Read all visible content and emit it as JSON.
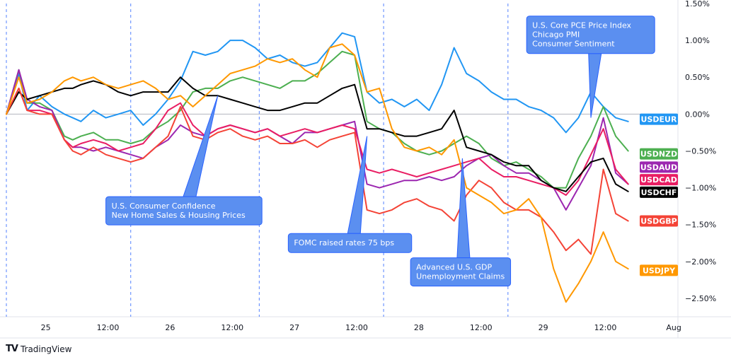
{
  "brand": {
    "logo": "TV",
    "name": "TradingView"
  },
  "chart_data": {
    "type": "line",
    "y_unit": "%",
    "ylim": [
      -2.75,
      1.5
    ],
    "yticks": [
      "1.50%",
      "1.00%",
      "0.50%",
      "0.00%",
      "−0.50%",
      "−1.00%",
      "−1.50%",
      "−2.00%",
      "−2.50%"
    ],
    "ytick_values": [
      1.5,
      1.0,
      0.5,
      0.0,
      -0.5,
      -1.0,
      -1.5,
      -2.0,
      -2.5
    ],
    "xlim": [
      0,
      162
    ],
    "xticks": [
      {
        "label": "25",
        "x": 9.5
      },
      {
        "label": "12:00",
        "x": 24.5
      },
      {
        "label": "26",
        "x": 39.5
      },
      {
        "label": "12:00",
        "x": 54.5
      },
      {
        "label": "27",
        "x": 69.5
      },
      {
        "label": "12:00",
        "x": 84.5
      },
      {
        "label": "28",
        "x": 99.5
      },
      {
        "label": "12:00",
        "x": 114.5
      },
      {
        "label": "29",
        "x": 129.5
      },
      {
        "label": "12:00",
        "x": 144.5
      },
      {
        "label": "Aug",
        "x": 161
      }
    ],
    "event_lines": [
      0,
      30,
      61,
      91,
      121
    ],
    "grid": "none",
    "series": [
      {
        "name": "USDEUR",
        "color": "#2196f3",
        "x": [
          0,
          3,
          5,
          8,
          11,
          14,
          16,
          18,
          21,
          24,
          27,
          30,
          33,
          36,
          39,
          42,
          45,
          48,
          51,
          54,
          57,
          60,
          63,
          66,
          69,
          72,
          75,
          78,
          81,
          84,
          87,
          90,
          93,
          96,
          99,
          102,
          105,
          108,
          111,
          114,
          117,
          120,
          123,
          126,
          129,
          132,
          135,
          138,
          141,
          144,
          147,
          150
        ],
        "y": [
          0,
          0.55,
          0.05,
          0.25,
          0.1,
          0,
          -0.05,
          -0.1,
          0.05,
          -0.05,
          0,
          0.05,
          -0.15,
          0,
          0.2,
          0.45,
          0.85,
          0.8,
          0.85,
          1.0,
          1.0,
          0.9,
          0.75,
          0.8,
          0.7,
          0.65,
          0.7,
          0.9,
          1.1,
          1.05,
          0.3,
          0.15,
          0.2,
          0.1,
          0.2,
          0.05,
          0.4,
          0.9,
          0.55,
          0.45,
          0.3,
          0.2,
          0.2,
          0.1,
          0.05,
          -0.05,
          -0.25,
          -0.05,
          0.3,
          0.1,
          -0.05,
          -0.1
        ]
      },
      {
        "name": "USDNZD",
        "color": "#4caf50",
        "x": [
          0,
          3,
          5,
          8,
          11,
          14,
          16,
          18,
          21,
          24,
          27,
          30,
          33,
          36,
          39,
          42,
          45,
          48,
          51,
          54,
          57,
          60,
          63,
          66,
          69,
          72,
          75,
          78,
          81,
          84,
          87,
          90,
          93,
          96,
          99,
          102,
          105,
          108,
          111,
          114,
          117,
          120,
          123,
          126,
          129,
          132,
          135,
          138,
          141,
          144,
          147,
          150
        ],
        "y": [
          0,
          0.6,
          0.15,
          0.15,
          0.05,
          -0.3,
          -0.35,
          -0.3,
          -0.25,
          -0.35,
          -0.35,
          -0.4,
          -0.35,
          -0.2,
          -0.1,
          0.05,
          0.3,
          0.35,
          0.35,
          0.45,
          0.5,
          0.45,
          0.4,
          0.35,
          0.45,
          0.45,
          0.55,
          0.7,
          0.85,
          0.8,
          -0.1,
          -0.2,
          -0.25,
          -0.4,
          -0.5,
          -0.55,
          -0.5,
          -0.4,
          -0.3,
          -0.4,
          -0.6,
          -0.7,
          -0.65,
          -0.75,
          -0.85,
          -1.0,
          -1.0,
          -0.6,
          -0.3,
          0.1,
          -0.3,
          -0.5
        ]
      },
      {
        "name": "USDAUD",
        "color": "#9c27b0",
        "x": [
          0,
          3,
          5,
          8,
          11,
          14,
          16,
          18,
          21,
          24,
          27,
          30,
          33,
          36,
          39,
          42,
          45,
          48,
          51,
          54,
          57,
          60,
          63,
          66,
          69,
          72,
          75,
          78,
          81,
          84,
          87,
          90,
          93,
          96,
          99,
          102,
          105,
          108,
          111,
          114,
          117,
          120,
          123,
          126,
          129,
          132,
          135,
          138,
          141,
          144,
          147,
          150
        ],
        "y": [
          0,
          0.6,
          0.2,
          0.1,
          0.05,
          -0.35,
          -0.45,
          -0.45,
          -0.5,
          -0.45,
          -0.5,
          -0.55,
          -0.6,
          -0.45,
          -0.35,
          -0.15,
          -0.25,
          -0.3,
          -0.2,
          -0.15,
          -0.2,
          -0.25,
          -0.2,
          -0.3,
          -0.4,
          -0.25,
          -0.25,
          -0.2,
          -0.15,
          -0.1,
          -0.95,
          -1.0,
          -0.95,
          -0.9,
          -0.9,
          -0.85,
          -0.9,
          -0.85,
          -0.7,
          -0.6,
          -0.55,
          -0.7,
          -0.8,
          -0.8,
          -0.9,
          -1.0,
          -1.3,
          -1.0,
          -0.7,
          -0.05,
          -0.8,
          -0.95
        ]
      },
      {
        "name": "USDCAD",
        "color": "#e91e63",
        "x": [
          0,
          3,
          5,
          8,
          11,
          14,
          16,
          18,
          21,
          24,
          27,
          30,
          33,
          36,
          39,
          42,
          45,
          48,
          51,
          54,
          57,
          60,
          63,
          66,
          69,
          72,
          75,
          78,
          81,
          84,
          87,
          90,
          93,
          96,
          99,
          102,
          105,
          108,
          111,
          114,
          117,
          120,
          123,
          126,
          129,
          132,
          135,
          138,
          141,
          144,
          147,
          150
        ],
        "y": [
          0,
          0.35,
          0.05,
          0.05,
          0.0,
          -0.35,
          -0.45,
          -0.4,
          -0.35,
          -0.4,
          -0.5,
          -0.45,
          -0.4,
          -0.2,
          0.05,
          0.15,
          -0.15,
          -0.3,
          -0.2,
          -0.15,
          -0.2,
          -0.25,
          -0.2,
          -0.3,
          -0.25,
          -0.2,
          -0.25,
          -0.2,
          -0.15,
          -0.2,
          -0.75,
          -0.8,
          -0.75,
          -0.8,
          -0.85,
          -0.8,
          -0.75,
          -0.7,
          -0.65,
          -0.6,
          -0.75,
          -0.85,
          -0.85,
          -0.9,
          -0.95,
          -1.0,
          -1.1,
          -0.9,
          -0.55,
          -0.2,
          -0.75,
          -0.95
        ]
      },
      {
        "name": "USDCHF",
        "color": "#000000",
        "x": [
          0,
          3,
          5,
          8,
          11,
          14,
          16,
          18,
          21,
          24,
          27,
          30,
          33,
          36,
          39,
          42,
          45,
          48,
          51,
          54,
          57,
          60,
          63,
          66,
          69,
          72,
          75,
          78,
          81,
          84,
          87,
          90,
          93,
          96,
          99,
          102,
          105,
          108,
          111,
          114,
          117,
          120,
          123,
          126,
          129,
          132,
          135,
          138,
          141,
          144,
          147,
          150
        ],
        "y": [
          0,
          0.3,
          0.2,
          0.25,
          0.3,
          0.35,
          0.35,
          0.4,
          0.45,
          0.4,
          0.3,
          0.25,
          0.3,
          0.3,
          0.3,
          0.5,
          0.35,
          0.25,
          0.25,
          0.2,
          0.15,
          0.1,
          0.05,
          0.05,
          0.1,
          0.15,
          0.15,
          0.25,
          0.35,
          0.4,
          -0.2,
          -0.2,
          -0.25,
          -0.3,
          -0.3,
          -0.25,
          -0.2,
          0.05,
          -0.45,
          -0.5,
          -0.55,
          -0.65,
          -0.7,
          -0.7,
          -0.9,
          -1.0,
          -1.05,
          -0.85,
          -0.65,
          -0.6,
          -0.95,
          -1.05
        ]
      },
      {
        "name": "USDGBP",
        "color": "#f44336",
        "x": [
          0,
          3,
          5,
          8,
          11,
          14,
          16,
          18,
          21,
          24,
          27,
          30,
          33,
          36,
          39,
          42,
          45,
          48,
          51,
          54,
          57,
          60,
          63,
          66,
          69,
          72,
          75,
          78,
          81,
          84,
          87,
          90,
          93,
          96,
          99,
          102,
          105,
          108,
          111,
          114,
          117,
          120,
          123,
          126,
          129,
          132,
          135,
          138,
          141,
          144,
          147,
          150
        ],
        "y": [
          0,
          0.35,
          0.05,
          0.0,
          0.0,
          -0.35,
          -0.5,
          -0.55,
          -0.45,
          -0.55,
          -0.6,
          -0.65,
          -0.6,
          -0.45,
          -0.3,
          0.1,
          -0.3,
          -0.35,
          -0.25,
          -0.2,
          -0.3,
          -0.35,
          -0.3,
          -0.4,
          -0.4,
          -0.35,
          -0.45,
          -0.35,
          -0.3,
          -0.25,
          -1.3,
          -1.35,
          -1.3,
          -1.2,
          -1.15,
          -1.25,
          -1.3,
          -1.45,
          -1.1,
          -0.9,
          -1.0,
          -1.2,
          -1.3,
          -1.3,
          -1.4,
          -1.6,
          -1.85,
          -1.7,
          -1.9,
          -0.75,
          -1.35,
          -1.45
        ]
      },
      {
        "name": "USDJPY",
        "color": "#ff9800",
        "x": [
          0,
          3,
          5,
          8,
          11,
          14,
          16,
          18,
          21,
          24,
          27,
          30,
          33,
          36,
          39,
          42,
          45,
          48,
          51,
          54,
          57,
          60,
          63,
          66,
          69,
          72,
          75,
          78,
          81,
          84,
          87,
          90,
          93,
          96,
          99,
          102,
          105,
          108,
          111,
          114,
          117,
          120,
          123,
          126,
          129,
          132,
          135,
          138,
          141,
          144,
          147,
          150
        ],
        "y": [
          0,
          0.5,
          0.15,
          0.2,
          0.3,
          0.45,
          0.5,
          0.45,
          0.5,
          0.4,
          0.35,
          0.4,
          0.45,
          0.35,
          0.2,
          0.25,
          0.1,
          0.25,
          0.4,
          0.55,
          0.6,
          0.65,
          0.75,
          0.7,
          0.75,
          0.6,
          0.5,
          0.9,
          0.95,
          0.8,
          0.3,
          0.35,
          -0.2,
          -0.45,
          -0.5,
          -0.45,
          -0.55,
          -0.35,
          -1.0,
          -1.1,
          -1.2,
          -1.35,
          -1.3,
          -1.15,
          -1.4,
          -2.1,
          -2.55,
          -2.3,
          -2.0,
          -1.6,
          -2.0,
          -2.1
        ]
      }
    ],
    "badges": [
      {
        "label": "USDEUR",
        "color": "#2196f3",
        "y": -0.07
      },
      {
        "label": "USDNZD",
        "color": "#4caf50",
        "y": -0.54
      },
      {
        "label": "USDAUD",
        "color": "#9c27b0",
        "y": -0.72
      },
      {
        "label": "USDCAD",
        "color": "#e91e63",
        "y": -0.89
      },
      {
        "label": "USDCHF",
        "color": "#000000",
        "y": -1.06
      },
      {
        "label": "USDGBP",
        "color": "#f44336",
        "y": -1.45
      },
      {
        "label": "USDJPY",
        "color": "#ff9800",
        "y": -2.12
      }
    ],
    "annotations": [
      {
        "lines": [
          "U.S. Consumer Confidence",
          "New Home Sales & Housing Prices"
        ],
        "box_x": 24,
        "box_y": -1.12,
        "tip_x": 51,
        "tip_y": 0.25
      },
      {
        "lines": [
          "FOMC raised rates 75 bps"
        ],
        "box_x": 68,
        "box_y": -1.62,
        "tip_x": 87,
        "tip_y": -0.3
      },
      {
        "lines": [
          "Advanced U.S. GDP",
          "Unemployment Claims"
        ],
        "box_x": 97.5,
        "box_y": -1.95,
        "tip_x": 110,
        "tip_y": -0.6
      },
      {
        "lines": [
          "U.S. Core PCE Price Index",
          "Chicago PMI",
          "Consumer Sentiment"
        ],
        "box_x": 125.5,
        "box_y": 1.33,
        "tip_x": 141,
        "tip_y": -0.05
      }
    ]
  }
}
